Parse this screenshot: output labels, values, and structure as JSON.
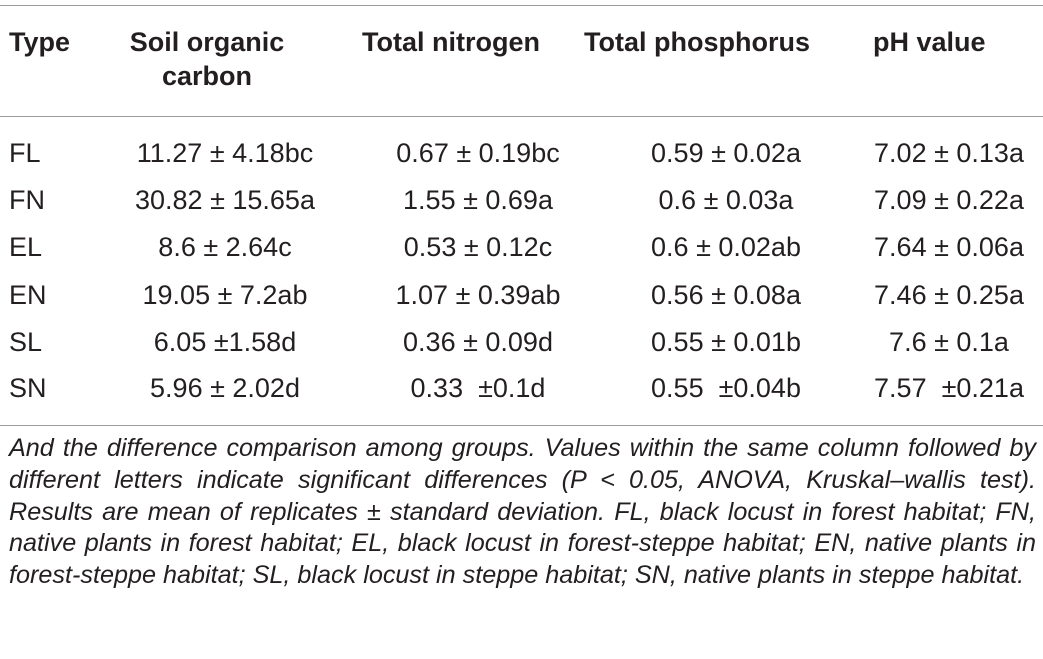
{
  "table": {
    "headers": {
      "type": "Type",
      "soil_organic_carbon": "Soil organic carbon",
      "total_nitrogen": "Total nitrogen",
      "total_phosphorus": "Total phosphorus",
      "ph_value": "pH value"
    },
    "rows": [
      {
        "type": "FL",
        "soc": "11.27 ± 4.18bc",
        "tn": "0.67 ± 0.19bc",
        "tp": "0.59 ± 0.02a",
        "ph": "7.02 ± 0.13a"
      },
      {
        "type": "FN",
        "soc": "30.82 ± 15.65a",
        "tn": "1.55 ± 0.69a",
        "tp": "0.6 ± 0.03a",
        "ph": "7.09 ± 0.22a"
      },
      {
        "type": "EL",
        "soc": "8.6 ± 2.64c",
        "tn": "0.53 ± 0.12c",
        "tp": "0.6 ± 0.02ab",
        "ph": "7.64 ± 0.06a"
      },
      {
        "type": "EN",
        "soc": "19.05 ± 7.2ab",
        "tn": "1.07 ± 0.39ab",
        "tp": "0.56 ± 0.08a",
        "ph": "7.46 ± 0.25a"
      },
      {
        "type": "SL",
        "soc": "6.05 ±1.58d",
        "tn": "0.36 ± 0.09d",
        "tp": "0.55 ± 0.01b",
        "ph": "7.6 ± 0.1a"
      },
      {
        "type": "SN",
        "soc": "5.96 ± 2.02d",
        "tn": "0.33  ±0.1d",
        "tp": "0.55  ±0.04b",
        "ph": "7.57  ±0.21a"
      }
    ]
  },
  "caption": "And the difference comparison among groups. Values within the same column followed by different letters indicate significant differences (P < 0.05, ANOVA, Kruskal–wallis test). Results are mean of replicates ± standard deviation. FL, black locust in forest habitat; FN, native plants in forest habitat; EL, black locust in forest-steppe habitat; EN, native plants in forest-steppe habitat; SL, black locust in steppe habitat; SN, native plants in steppe habitat."
}
